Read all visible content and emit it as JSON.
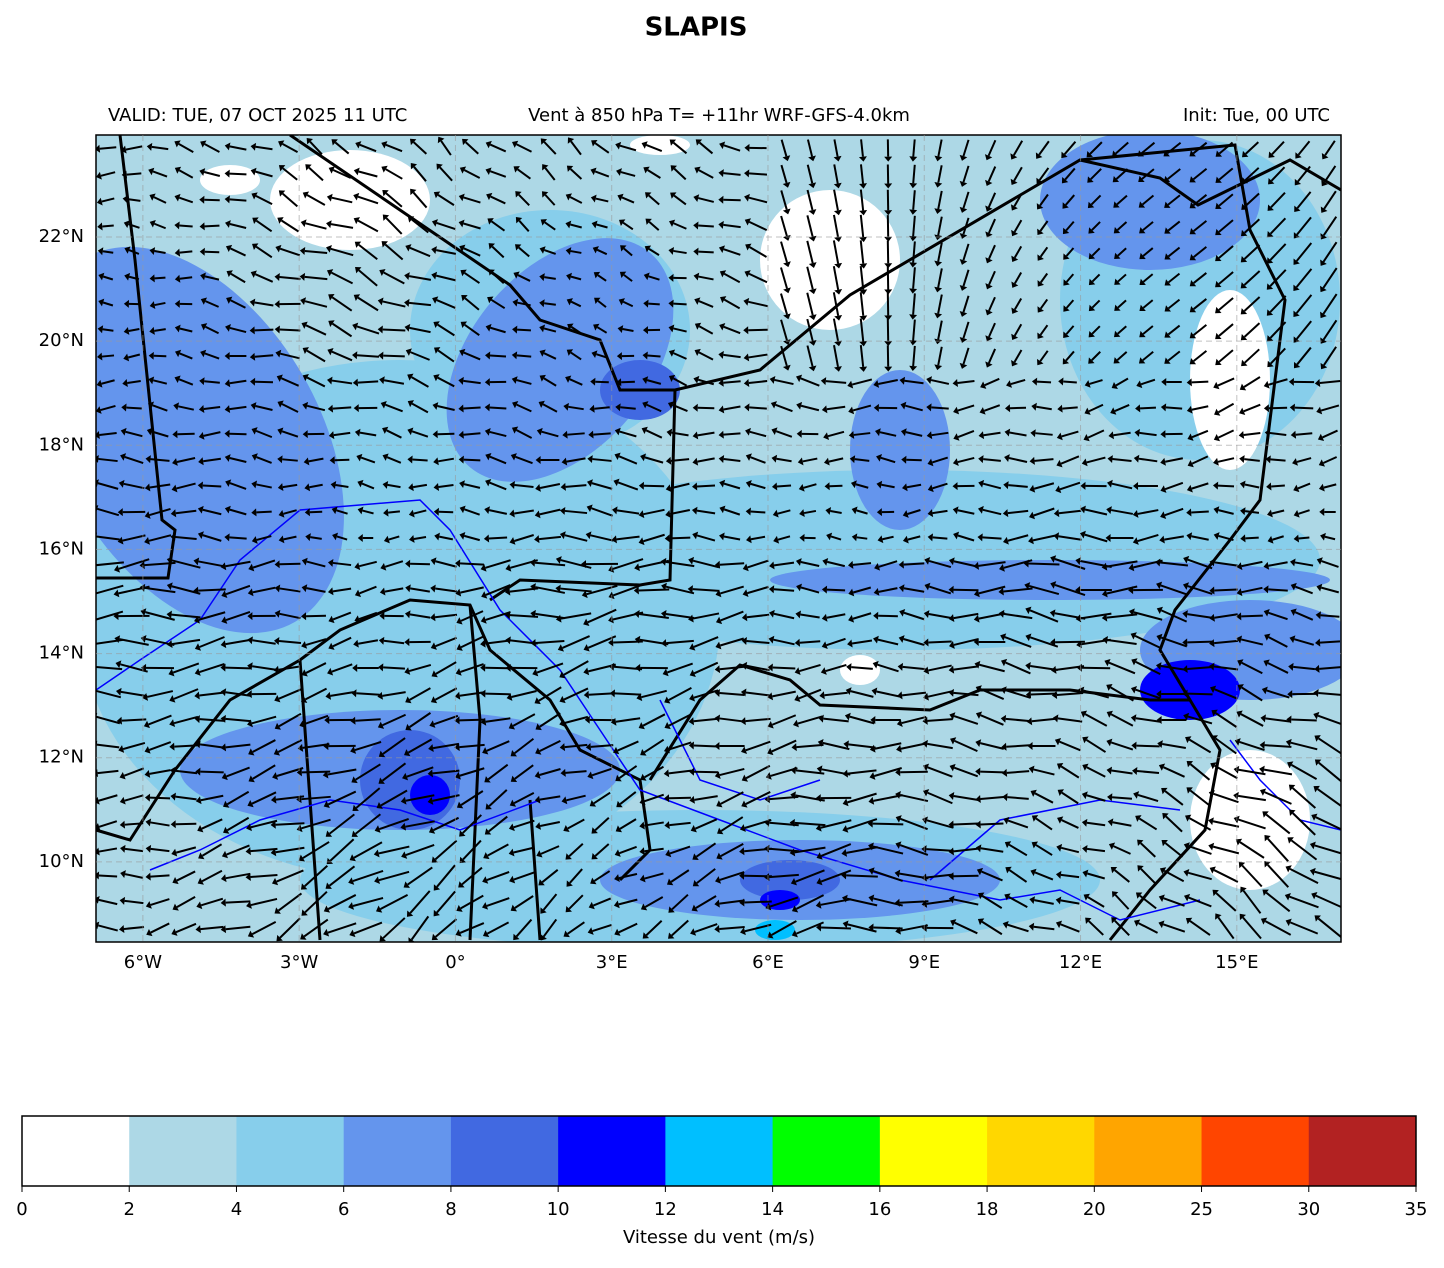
{
  "title": "SLAPIS",
  "subtitle_left": "VALID: TUE, 07 OCT 2025 11 UTC",
  "subtitle_center": "Vent à 850 hPa T= +11hr  WRF-GFS-4.0km",
  "subtitle_right": "Init: Tue, 00 UTC",
  "map": {
    "lon_range": [
      -6.9,
      17
    ],
    "lat_range": [
      8.46,
      23.96
    ],
    "lon_ticks": [
      {
        "value": -6,
        "label": "6°W"
      },
      {
        "value": -3,
        "label": "3°W"
      },
      {
        "value": 0,
        "label": "0°"
      },
      {
        "value": 3,
        "label": "3°E"
      },
      {
        "value": 6,
        "label": "6°E"
      },
      {
        "value": 9,
        "label": "9°E"
      },
      {
        "value": 12,
        "label": "12°E"
      },
      {
        "value": 15,
        "label": "15°E"
      }
    ],
    "lat_ticks": [
      {
        "value": 10,
        "label": "10°N"
      },
      {
        "value": 12,
        "label": "12°N"
      },
      {
        "value": 14,
        "label": "14°N"
      },
      {
        "value": 16,
        "label": "16°N"
      },
      {
        "value": 18,
        "label": "18°N"
      },
      {
        "value": 20,
        "label": "20°N"
      },
      {
        "value": 22,
        "label": "22°N"
      }
    ]
  },
  "colorbar": {
    "levels": [
      0,
      2,
      4,
      6,
      8,
      10,
      12,
      14,
      16,
      18,
      20,
      25,
      30,
      35
    ],
    "colors": [
      "#ffffff",
      "#add8e6",
      "#87ceeb",
      "#6495ed",
      "#4169e1",
      "#0000ff",
      "#00bfff",
      "#00ff00",
      "#ffff00",
      "#ffd700",
      "#ffa500",
      "#ff4500",
      "#b22222"
    ],
    "label": "Vitesse du vent (m/s)"
  }
}
